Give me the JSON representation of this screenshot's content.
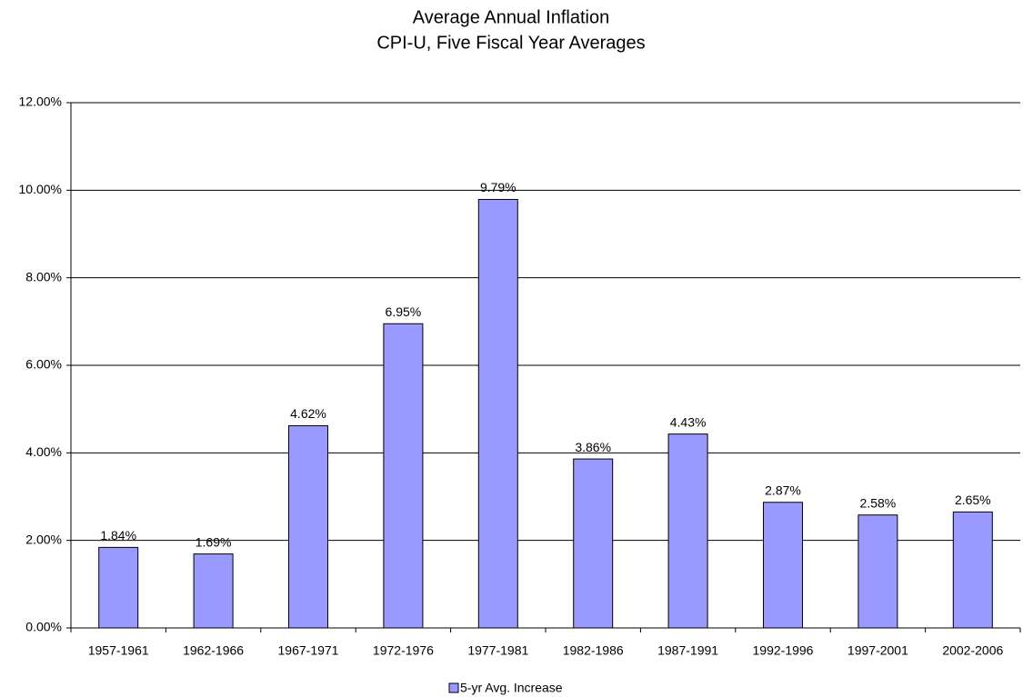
{
  "chart_data": {
    "type": "bar",
    "title": "Average Annual Inflation",
    "subtitle": "CPI-U, Five Fiscal Year Averages",
    "categories": [
      "1957-1961",
      "1962-1966",
      "1967-1971",
      "1972-1976",
      "1977-1981",
      "1982-1986",
      "1987-1991",
      "1992-1996",
      "1997-2001",
      "2002-2006"
    ],
    "series": [
      {
        "name": "5-yr Avg. Increase",
        "color": "#9999ff",
        "values": [
          1.84,
          1.69,
          4.62,
          6.95,
          9.79,
          3.86,
          4.43,
          2.87,
          2.58,
          2.65
        ],
        "value_labels": [
          "1.84%",
          "1.69%",
          "4.62%",
          "6.95%",
          "9.79%",
          "3.86%",
          "4.43%",
          "2.87%",
          "2.58%",
          "2.65%"
        ]
      }
    ],
    "ylim": [
      0,
      12
    ],
    "yticks": [
      {
        "value": 0,
        "label": "0.00%"
      },
      {
        "value": 2,
        "label": "2.00%"
      },
      {
        "value": 4,
        "label": "4.00%"
      },
      {
        "value": 6,
        "label": "6.00%"
      },
      {
        "value": 8,
        "label": "8.00%"
      },
      {
        "value": 10,
        "label": "10.00%"
      },
      {
        "value": 12,
        "label": "12.00%"
      }
    ],
    "grid": true,
    "legend": "bottom"
  }
}
